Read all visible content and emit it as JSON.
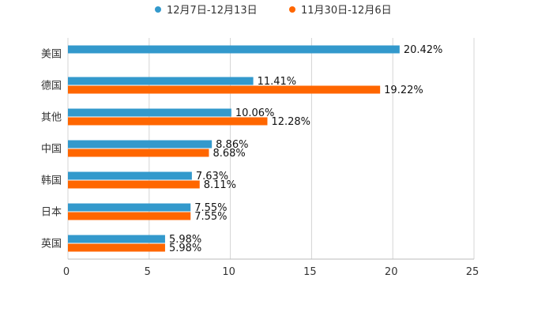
{
  "chart_data": {
    "type": "bar",
    "orientation": "horizontal",
    "title": "",
    "xlabel": "",
    "ylabel": "",
    "xlim": [
      0,
      25
    ],
    "xticks": [
      0,
      5,
      10,
      15,
      20,
      25
    ],
    "xtick_labels": [
      "0",
      "5",
      "10",
      "15",
      "20",
      "25"
    ],
    "grid": true,
    "legend_position": "top-center",
    "categories": [
      "美国",
      "德国",
      "其他",
      "中国",
      "韩国",
      "日本",
      "英国"
    ],
    "series": [
      {
        "name": "12月7日-12月13日",
        "color": "#3399cc",
        "values": [
          20.42,
          11.41,
          10.06,
          8.86,
          7.63,
          7.55,
          5.98
        ],
        "labels": [
          "20.42%",
          "11.41%",
          "10.06%",
          "8.86%",
          "7.63%",
          "7.55%",
          "5.98%"
        ]
      },
      {
        "name": "11月30日-12月6日",
        "color": "#ff6600",
        "values": [
          null,
          19.22,
          12.28,
          8.68,
          8.11,
          7.55,
          5.98
        ],
        "labels": [
          "",
          "19.22%",
          "12.28%",
          "8.68%",
          "8.11%",
          "7.55%",
          "5.98%"
        ]
      }
    ]
  }
}
